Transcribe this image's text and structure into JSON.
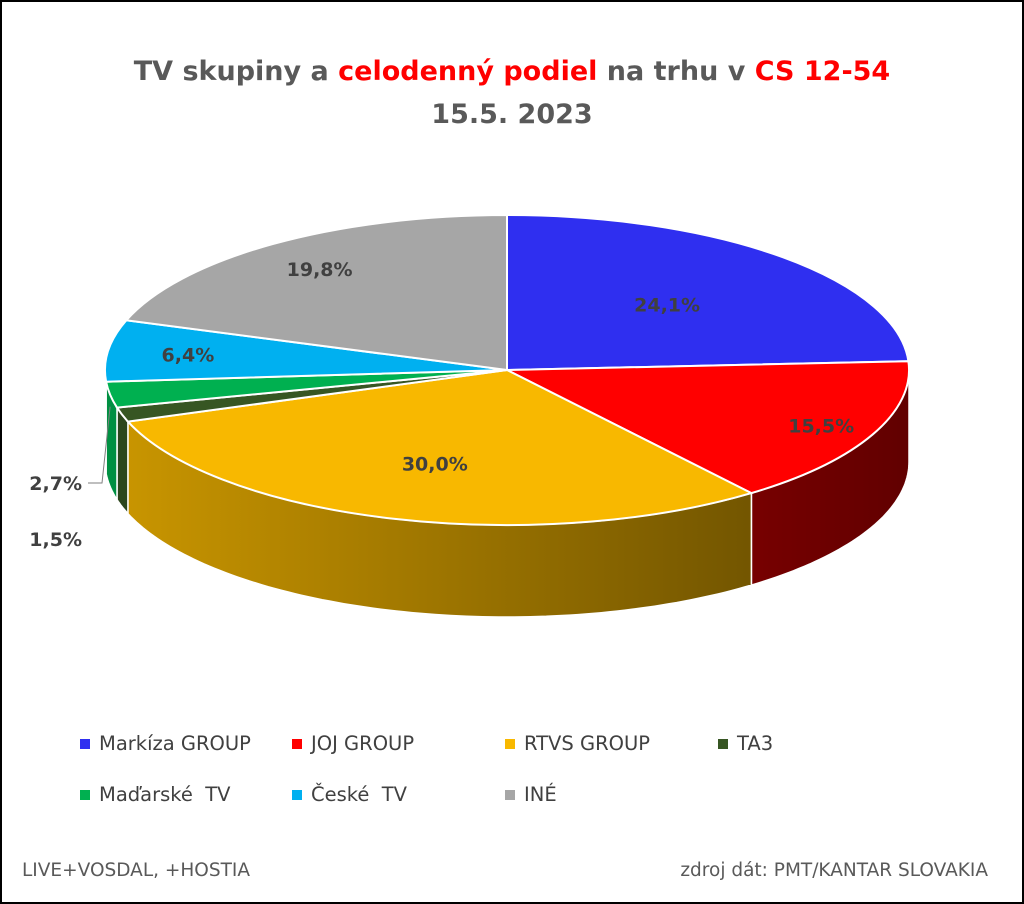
{
  "title": {
    "part1": "TV skupiny a ",
    "part2": "celodenný podiel",
    "part3": " na trhu v ",
    "part4": "CS 12-54",
    "line2": "15.5. 2023"
  },
  "footer": {
    "left": "LIVE+VOSDAL, +HOSTIA",
    "right": "zdroj dát: PMT/KANTAR SLOVAKIA"
  },
  "chart_data": {
    "type": "pie",
    "variant": "3d",
    "start": "12 o'clock, clockwise",
    "categories": [
      "Markíza GROUP",
      "JOJ GROUP",
      "RTVS GROUP",
      "TA3",
      "Maďarské  TV",
      "České  TV",
      "INÉ"
    ],
    "values": [
      24.1,
      15.5,
      30.0,
      1.5,
      2.7,
      6.4,
      19.8
    ],
    "labels": [
      "24,1%",
      "15,5%",
      "30,0%",
      "1,5%",
      "2,7%",
      "6,4%",
      "19,8%"
    ],
    "colors": [
      "#2f2ff0",
      "#ff0000",
      "#f8b800",
      "#375623",
      "#00b050",
      "#00b0f0",
      "#a6a6a6"
    ],
    "legend_position": "bottom"
  }
}
